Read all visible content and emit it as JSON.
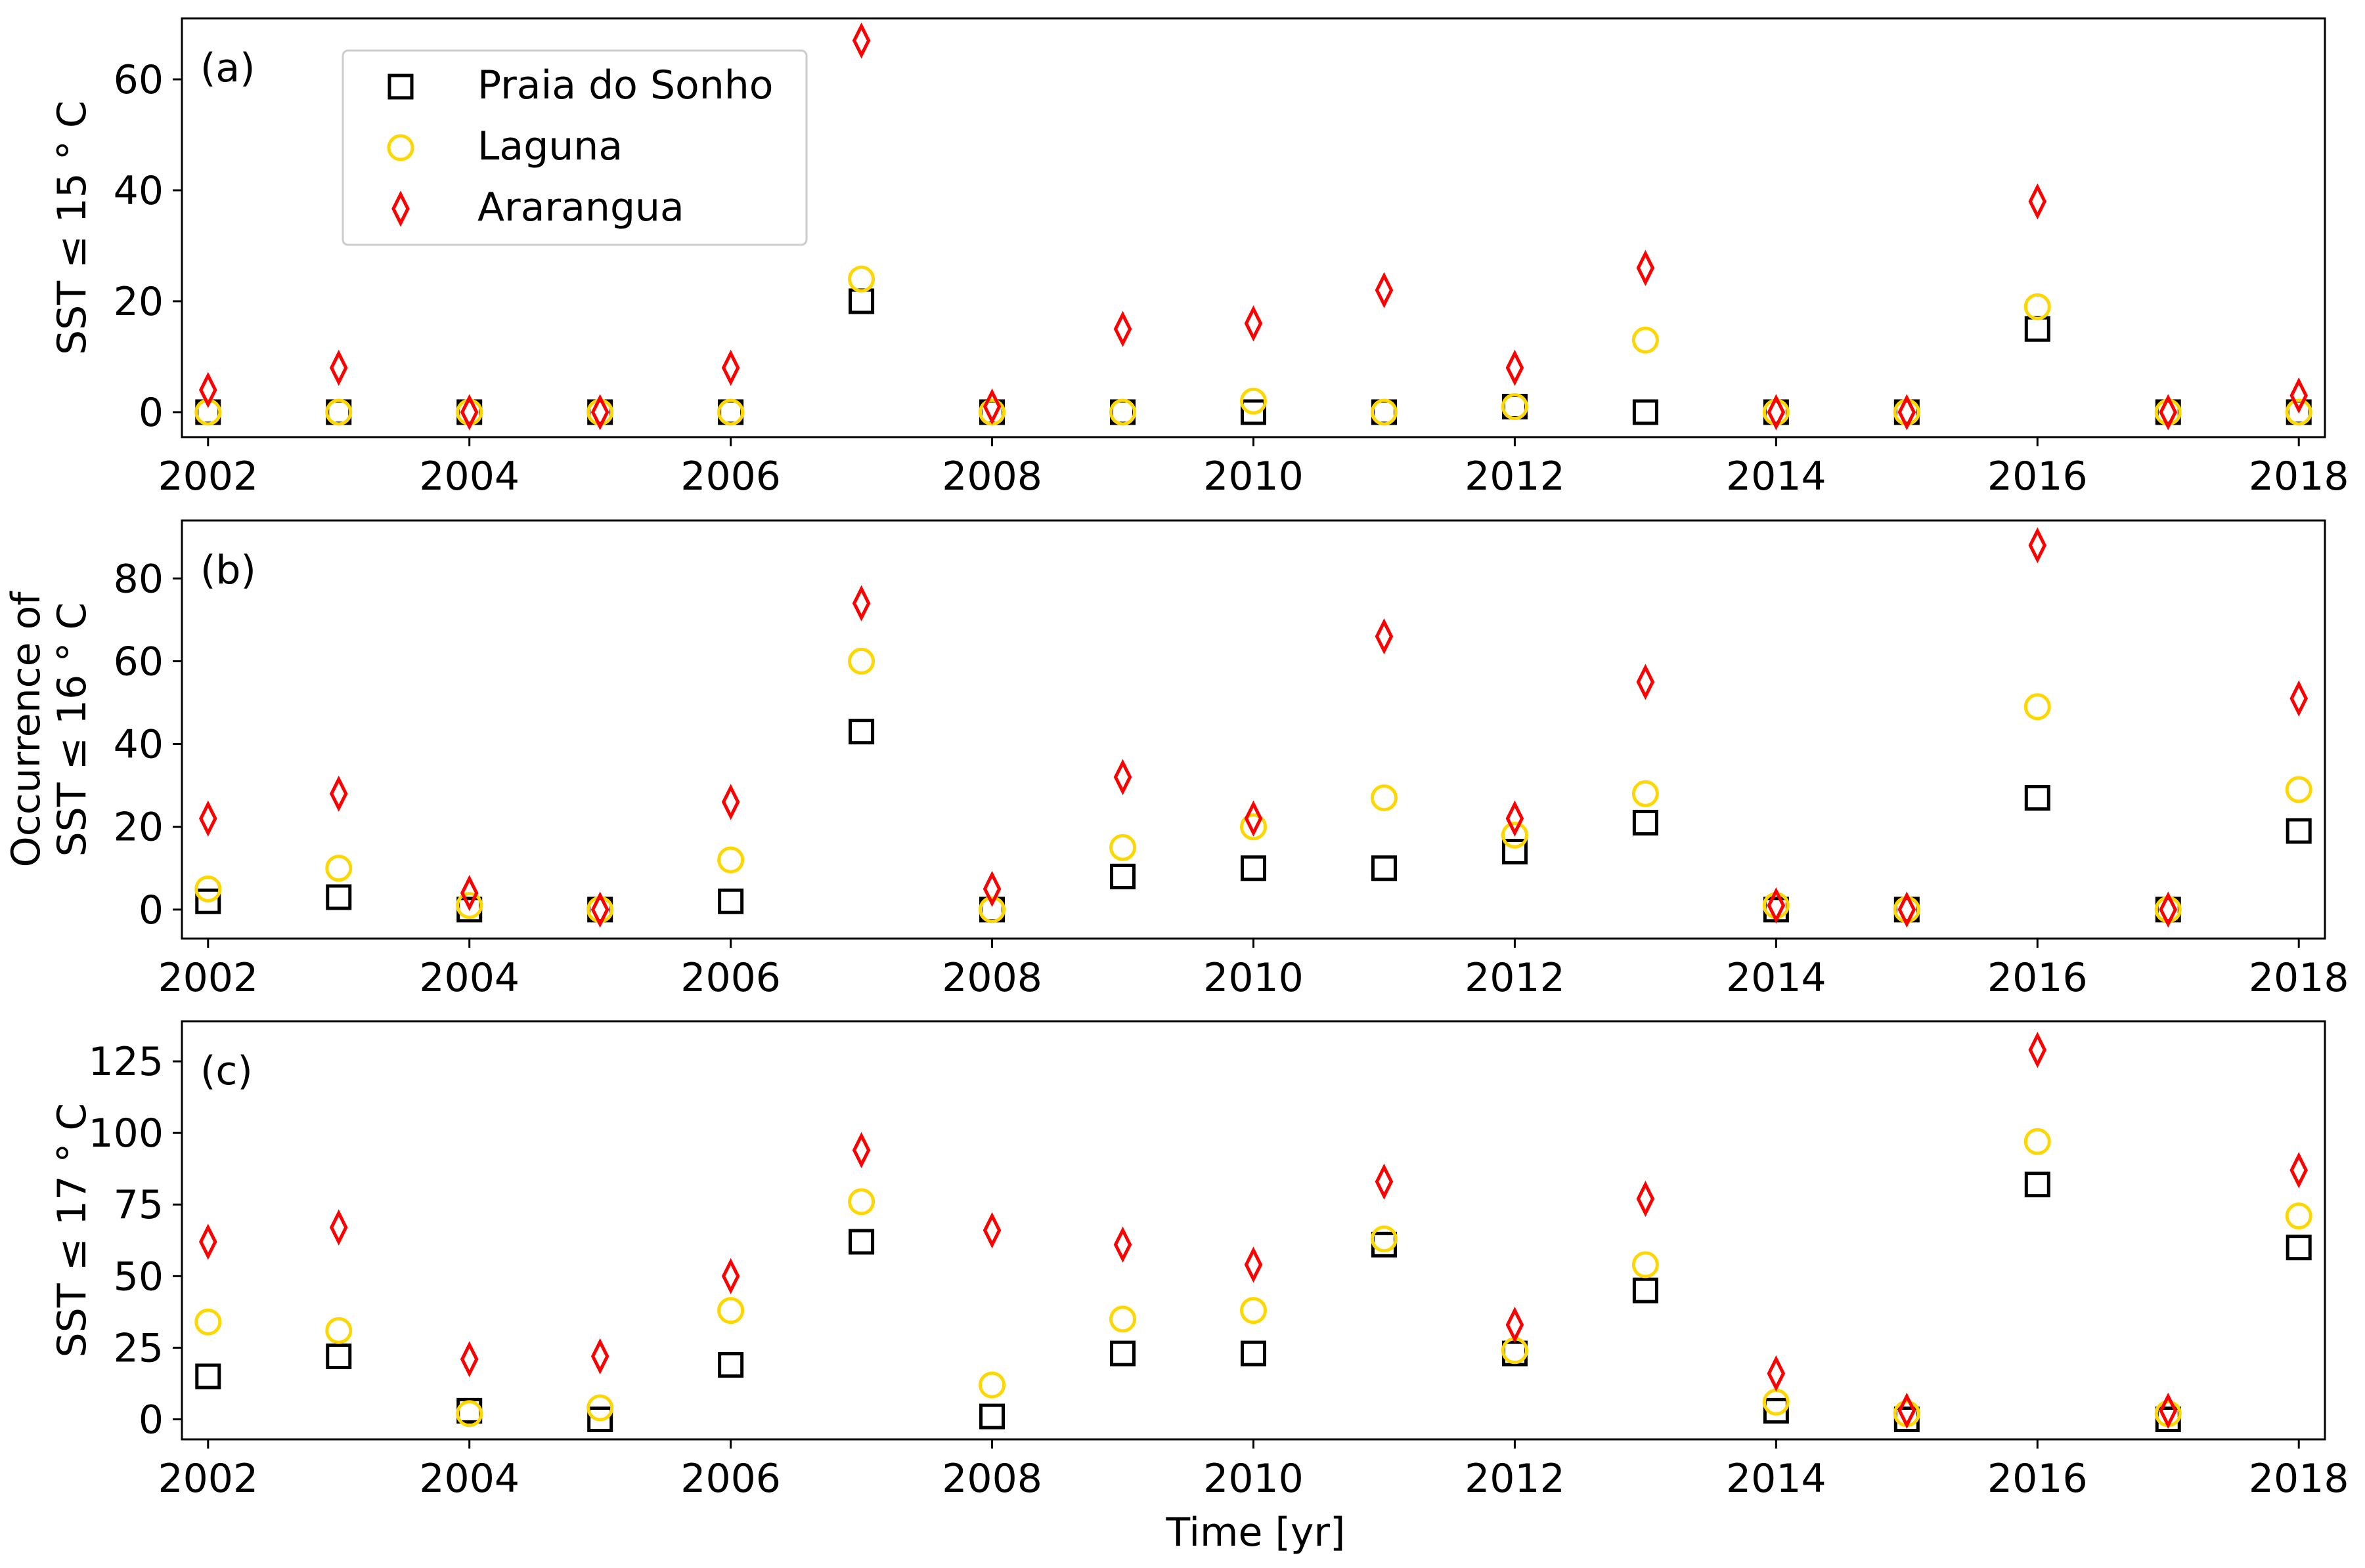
{
  "chart_data": {
    "type": "scatter",
    "xlabel": "Time [yr]",
    "x_ticks": [
      "2002",
      "2004",
      "2006",
      "2008",
      "2010",
      "2012",
      "2014",
      "2016",
      "2018"
    ],
    "xlim": [
      2001.8,
      2018.2
    ],
    "series_styles": [
      {
        "name": "Praia do Sonho",
        "marker": "square",
        "color": "#000000"
      },
      {
        "name": "Laguna",
        "marker": "circle",
        "color": "#FFD700"
      },
      {
        "name": "Ararangua",
        "marker": "diamond",
        "color": "#FF0000"
      }
    ],
    "legend": {
      "placement": "top-left (panel a)",
      "entries": [
        "Praia do Sonho",
        "Laguna",
        "Ararangua"
      ]
    },
    "panels": [
      {
        "label": "(a)",
        "ylabel": [
          "SST ≤ 15 ° C"
        ],
        "ylim": [
          -4.5,
          71
        ],
        "y_ticks": [
          0,
          20,
          40,
          60
        ],
        "x": [
          2002,
          2003,
          2004,
          2005,
          2006,
          2007,
          2008,
          2009,
          2010,
          2011,
          2012,
          2013,
          2014,
          2015,
          2016,
          2017,
          2018
        ],
        "series": [
          {
            "name": "Praia do Sonho",
            "values": [
              0,
              0,
              0,
              0,
              0,
              20,
              0,
              0,
              0,
              0,
              1,
              0,
              0,
              0,
              15,
              0,
              0
            ]
          },
          {
            "name": "Laguna",
            "values": [
              0,
              0,
              0,
              0,
              0,
              24,
              0,
              0,
              2,
              0,
              1,
              13,
              0,
              0,
              19,
              0,
              0
            ]
          },
          {
            "name": "Ararangua",
            "values": [
              4,
              8,
              0,
              0,
              8,
              67,
              1,
              15,
              16,
              22,
              8,
              26,
              0,
              0,
              38,
              0,
              3
            ]
          }
        ]
      },
      {
        "label": "(b)",
        "ylabel": [
          "Occurrence of",
          "SST ≤ 16 ° C"
        ],
        "ylim": [
          -7,
          94
        ],
        "y_ticks": [
          0,
          20,
          40,
          60,
          80
        ],
        "x": [
          2002,
          2003,
          2004,
          2005,
          2006,
          2007,
          2008,
          2009,
          2010,
          2011,
          2012,
          2013,
          2014,
          2015,
          2016,
          2017,
          2018
        ],
        "series": [
          {
            "name": "Praia do Sonho",
            "values": [
              2,
              3,
              0,
              0,
              2,
              43,
              0,
              8,
              10,
              10,
              14,
              21,
              0,
              0,
              27,
              0,
              19
            ]
          },
          {
            "name": "Laguna",
            "values": [
              5,
              10,
              1,
              0,
              12,
              60,
              0,
              15,
              20,
              27,
              18,
              28,
              1,
              0,
              49,
              0,
              29
            ]
          },
          {
            "name": "Ararangua",
            "values": [
              22,
              28,
              4,
              0,
              26,
              74,
              5,
              32,
              22,
              66,
              22,
              55,
              1,
              0,
              88,
              0,
              51
            ]
          }
        ]
      },
      {
        "label": "(c)",
        "ylabel": [
          "SST ≤ 17 ° C"
        ],
        "ylim": [
          -7,
          139
        ],
        "y_ticks": [
          0,
          25,
          50,
          75,
          100,
          125
        ],
        "x": [
          2002,
          2003,
          2004,
          2005,
          2006,
          2007,
          2008,
          2009,
          2010,
          2011,
          2012,
          2013,
          2014,
          2015,
          2016,
          2017,
          2018
        ],
        "series": [
          {
            "name": "Praia do Sonho",
            "values": [
              15,
              22,
              3,
              0,
              19,
              62,
              1,
              23,
              23,
              61,
              23,
              45,
              3,
              0,
              82,
              0,
              60
            ]
          },
          {
            "name": "Laguna",
            "values": [
              34,
              31,
              2,
              4,
              38,
              76,
              12,
              35,
              38,
              63,
              24,
              54,
              6,
              2,
              97,
              2,
              71
            ]
          },
          {
            "name": "Ararangua",
            "values": [
              62,
              67,
              21,
              22,
              50,
              94,
              66,
              61,
              54,
              83,
              33,
              77,
              16,
              3,
              129,
              3,
              87
            ]
          }
        ]
      }
    ]
  }
}
